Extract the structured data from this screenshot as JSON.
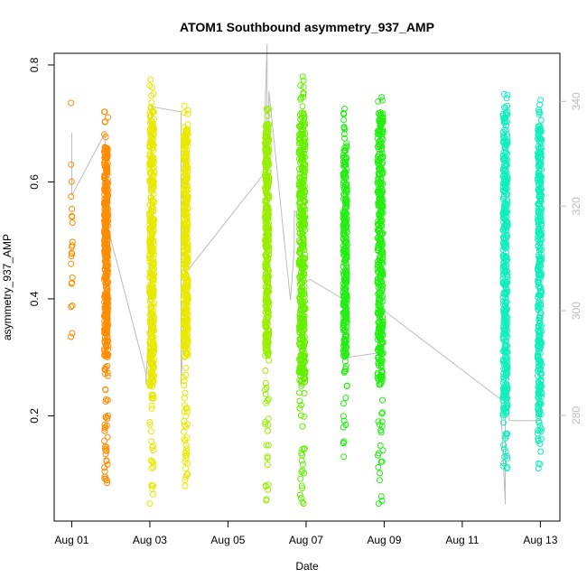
{
  "chart_data": {
    "type": "scatter",
    "title": "ATOM1 Southbound asymmetry_937_AMP",
    "xlabel": "Date",
    "ylabel": "asymmetry_937_AMP",
    "x_tick_labels": [
      "Aug 01",
      "Aug 03",
      "Aug 05",
      "Aug 07",
      "Aug 09",
      "Aug 11",
      "Aug 13"
    ],
    "x_tick_days": [
      1,
      3,
      5,
      7,
      9,
      11,
      13
    ],
    "xlim_days": [
      0.55,
      13.5
    ],
    "ylim": [
      0.02,
      0.82
    ],
    "y_ticks": [
      0.2,
      0.4,
      0.6,
      0.8
    ],
    "y_tick_labels": [
      "0.2",
      "0.4",
      "0.6",
      "0.8"
    ],
    "right_axis": {
      "ylim": [
        259.8,
        349.2
      ],
      "ticks": [
        280,
        300,
        320,
        340
      ],
      "tick_labels": [
        "280",
        "300",
        "320",
        "340"
      ],
      "color": "#bdbdbd"
    },
    "grid": false,
    "legend": "none",
    "marker": "open-circle",
    "series": [
      {
        "color": "#ff8c00",
        "points": [
          {
            "x_center": 1.0,
            "spread": 0.02,
            "ymin": 0.335,
            "ymax": 0.735,
            "n": 22,
            "dense_min": 0.34,
            "dense_max": 0.64
          },
          {
            "x_center": 1.88,
            "spread": 0.05,
            "ymin": 0.085,
            "ymax": 0.72,
            "n": 420,
            "dense_min": 0.3,
            "dense_max": 0.66
          }
        ]
      },
      {
        "color": "#e8e800",
        "points": [
          {
            "x_center": 3.05,
            "spread": 0.06,
            "ymin": 0.05,
            "ymax": 0.775,
            "n": 420,
            "dense_min": 0.25,
            "dense_max": 0.72
          },
          {
            "x_center": 3.92,
            "spread": 0.06,
            "ymin": 0.08,
            "ymax": 0.73,
            "n": 420,
            "dense_min": 0.3,
            "dense_max": 0.7
          }
        ]
      },
      {
        "color": "#99ee00",
        "points": [
          {
            "x_center": 6.0,
            "spread": 0.05,
            "ymin": 0.055,
            "ymax": 0.725,
            "n": 400,
            "dense_min": 0.3,
            "dense_max": 0.7
          }
        ]
      },
      {
        "color": "#66ee00",
        "points": [
          {
            "x_center": 6.9,
            "spread": 0.08,
            "ymin": 0.05,
            "ymax": 0.78,
            "n": 450,
            "dense_min": 0.25,
            "dense_max": 0.72
          }
        ]
      },
      {
        "color": "#22ee11",
        "points": [
          {
            "x_center": 8.0,
            "spread": 0.05,
            "ymin": 0.13,
            "ymax": 0.725,
            "n": 320,
            "dense_min": 0.3,
            "dense_max": 0.66
          },
          {
            "x_center": 8.9,
            "spread": 0.07,
            "ymin": 0.05,
            "ymax": 0.745,
            "n": 420,
            "dense_min": 0.25,
            "dense_max": 0.72
          }
        ]
      },
      {
        "color": "#11eebb",
        "points": [
          {
            "x_center": 12.1,
            "spread": 0.06,
            "ymin": 0.11,
            "ymax": 0.75,
            "n": 420,
            "dense_min": 0.2,
            "dense_max": 0.72
          },
          {
            "x_center": 12.98,
            "spread": 0.05,
            "ymin": 0.11,
            "ymax": 0.74,
            "n": 380,
            "dense_min": 0.2,
            "dense_max": 0.7
          }
        ]
      }
    ],
    "gray_line": {
      "color": "#bdbdbd",
      "axis": "right",
      "x": [
        1.0,
        1.0,
        1.0,
        1.85,
        1.85,
        2.9,
        2.9,
        3.0,
        3.05,
        3.8,
        3.8,
        3.9,
        3.9,
        4.0,
        5.9,
        6.0,
        6.0,
        6.05,
        6.6,
        6.7,
        6.7,
        6.9,
        6.9,
        7.1,
        8.0,
        8.0,
        8.9,
        8.9,
        9.0,
        12.0,
        12.0,
        12.1,
        12.1,
        12.2,
        12.2,
        13.0,
        13.0
      ],
      "y": [
        334,
        330,
        322,
        334,
        318,
        288,
        286,
        301,
        339,
        338,
        286,
        302,
        310,
        308,
        326,
        351,
        303,
        342,
        302,
        312,
        319,
        319,
        305,
        306,
        302,
        291,
        292,
        300,
        300,
        283,
        280,
        263,
        282,
        285,
        279,
        279,
        283
      ]
    }
  }
}
